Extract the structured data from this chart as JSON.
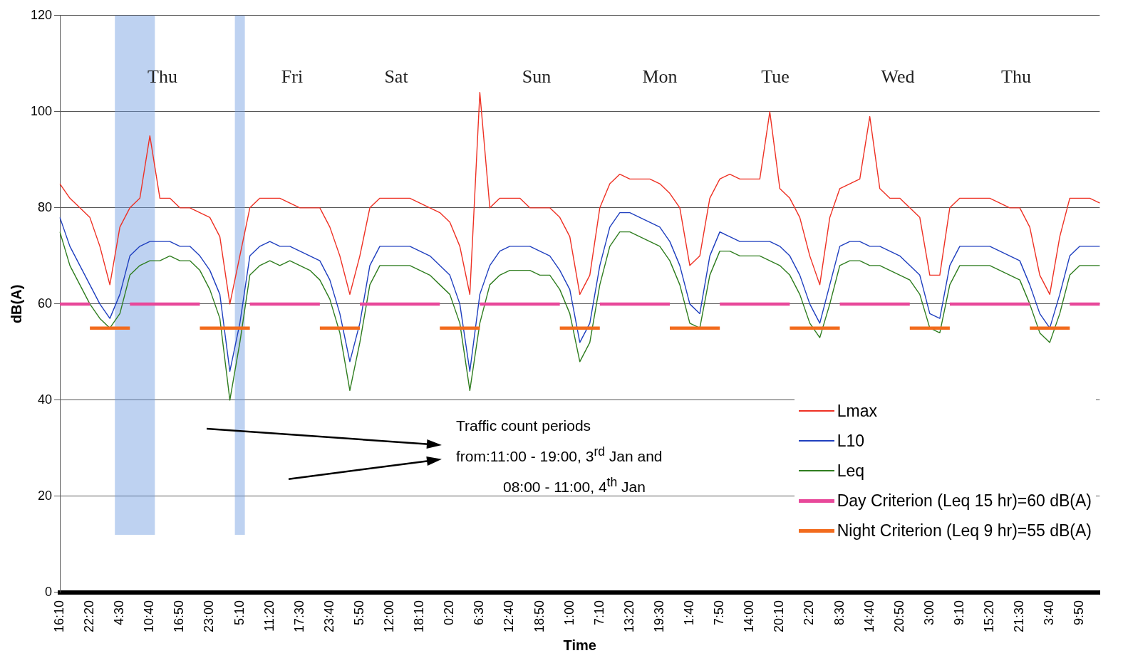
{
  "chart_data": {
    "type": "line",
    "xlabel": "Time",
    "ylabel": "dB(A)",
    "categories": [
      "16:10",
      null,
      null,
      "22:20",
      null,
      null,
      "4:30",
      null,
      null,
      "10:40",
      null,
      null,
      "16:50",
      null,
      null,
      "23:00",
      null,
      null,
      "5:10",
      null,
      null,
      "11:20",
      null,
      null,
      "17:30",
      null,
      null,
      "23:40",
      null,
      null,
      "5:50",
      null,
      null,
      "12:00",
      null,
      null,
      "18:10",
      null,
      null,
      "0:20",
      null,
      null,
      "6:30",
      null,
      null,
      "12:40",
      null,
      null,
      "18:50",
      null,
      null,
      "1:00",
      null,
      null,
      "7:10",
      null,
      null,
      "13:20",
      null,
      null,
      "19:30",
      null,
      null,
      "1:40",
      null,
      null,
      "7:50",
      null,
      null,
      "14:00",
      null,
      null,
      "20:10",
      null,
      null,
      "2:20",
      null,
      null,
      "8:30",
      null,
      null,
      "14:40",
      null,
      null,
      "20:50",
      null,
      null,
      "3:00",
      null,
      null,
      "9:10",
      null,
      null,
      "15:20",
      null,
      null,
      "21:30",
      null,
      null,
      "3:40",
      null,
      null,
      "9:50",
      null,
      null
    ],
    "series": [
      {
        "name": "Lmax",
        "color": "#ee3124",
        "values": [
          85,
          82,
          80,
          78,
          72,
          64,
          76,
          80,
          82,
          95,
          82,
          82,
          80,
          80,
          79,
          78,
          74,
          60,
          70,
          80,
          82,
          82,
          82,
          81,
          80,
          80,
          80,
          76,
          70,
          62,
          70,
          80,
          82,
          82,
          82,
          82,
          81,
          80,
          79,
          77,
          72,
          62,
          104,
          80,
          82,
          82,
          82,
          80,
          80,
          80,
          78,
          74,
          62,
          66,
          80,
          85,
          87,
          86,
          86,
          86,
          85,
          83,
          80,
          68,
          70,
          82,
          86,
          87,
          86,
          86,
          86,
          100,
          84,
          82,
          78,
          70,
          64,
          78,
          84,
          85,
          86,
          99,
          84,
          82,
          82,
          80,
          78,
          66,
          66,
          80,
          82,
          82,
          82,
          82,
          81,
          80,
          80,
          76,
          66,
          62,
          74,
          82,
          82,
          82,
          81
        ]
      },
      {
        "name": "L10",
        "color": "#1f3fbf",
        "values": [
          78,
          72,
          68,
          64,
          60,
          57,
          62,
          70,
          72,
          73,
          73,
          73,
          72,
          72,
          70,
          67,
          62,
          46,
          56,
          70,
          72,
          73,
          72,
          72,
          71,
          70,
          69,
          65,
          58,
          48,
          56,
          68,
          72,
          72,
          72,
          72,
          71,
          70,
          68,
          66,
          60,
          46,
          62,
          68,
          71,
          72,
          72,
          72,
          71,
          70,
          67,
          63,
          52,
          56,
          68,
          76,
          79,
          79,
          78,
          77,
          76,
          73,
          68,
          60,
          58,
          70,
          75,
          74,
          73,
          73,
          73,
          73,
          72,
          70,
          66,
          60,
          56,
          64,
          72,
          73,
          73,
          72,
          72,
          71,
          70,
          68,
          66,
          58,
          57,
          68,
          72,
          72,
          72,
          72,
          71,
          70,
          69,
          64,
          58,
          55,
          62,
          70,
          72,
          72,
          72
        ]
      },
      {
        "name": "Leq",
        "color": "#2f7d1f",
        "values": [
          75,
          68,
          64,
          60,
          57,
          55,
          58,
          66,
          68,
          69,
          69,
          70,
          69,
          69,
          67,
          63,
          57,
          40,
          52,
          66,
          68,
          69,
          68,
          69,
          68,
          67,
          65,
          61,
          54,
          42,
          52,
          64,
          68,
          68,
          68,
          68,
          67,
          66,
          64,
          62,
          56,
          42,
          56,
          64,
          66,
          67,
          67,
          67,
          66,
          66,
          63,
          58,
          48,
          52,
          64,
          72,
          75,
          75,
          74,
          73,
          72,
          69,
          64,
          56,
          55,
          66,
          71,
          71,
          70,
          70,
          70,
          69,
          68,
          66,
          62,
          56,
          53,
          60,
          68,
          69,
          69,
          68,
          68,
          67,
          66,
          65,
          62,
          55,
          54,
          64,
          68,
          68,
          68,
          68,
          67,
          66,
          65,
          60,
          54,
          52,
          58,
          66,
          68,
          68,
          68
        ]
      },
      {
        "name": "Day Criterion (Leq 15 hr)=60 dB(A)",
        "color": "#e8489a",
        "values": [
          60,
          60,
          60,
          60,
          null,
          null,
          null,
          60,
          60,
          60,
          60,
          60,
          60,
          60,
          60,
          null,
          null,
          null,
          null,
          60,
          60,
          60,
          60,
          60,
          60,
          60,
          60,
          null,
          null,
          null,
          60,
          60,
          60,
          60,
          60,
          60,
          60,
          60,
          60,
          null,
          null,
          null,
          60,
          60,
          60,
          60,
          60,
          60,
          60,
          60,
          60,
          null,
          null,
          null,
          60,
          60,
          60,
          60,
          60,
          60,
          60,
          60,
          null,
          null,
          null,
          null,
          60,
          60,
          60,
          60,
          60,
          60,
          60,
          60,
          null,
          null,
          null,
          null,
          60,
          60,
          60,
          60,
          60,
          60,
          60,
          60,
          null,
          null,
          null,
          60,
          60,
          60,
          60,
          60,
          60,
          60,
          60,
          60,
          null,
          null,
          null,
          60,
          60,
          60,
          60
        ]
      },
      {
        "name": "Night Criterion (Leq 9 hr)=55 dB(A)",
        "color": "#f26b1d",
        "values": [
          null,
          null,
          null,
          55,
          55,
          55,
          55,
          55,
          null,
          null,
          null,
          null,
          null,
          null,
          55,
          55,
          55,
          55,
          55,
          55,
          null,
          null,
          null,
          null,
          null,
          null,
          55,
          55,
          55,
          55,
          55,
          null,
          null,
          null,
          null,
          null,
          null,
          null,
          55,
          55,
          55,
          55,
          55,
          null,
          null,
          null,
          null,
          null,
          null,
          null,
          55,
          55,
          55,
          55,
          55,
          null,
          null,
          null,
          null,
          null,
          null,
          55,
          55,
          55,
          55,
          55,
          55,
          null,
          null,
          null,
          null,
          null,
          null,
          55,
          55,
          55,
          55,
          55,
          55,
          null,
          null,
          null,
          null,
          null,
          null,
          55,
          55,
          55,
          55,
          55,
          null,
          null,
          null,
          null,
          null,
          null,
          null,
          55,
          55,
          55,
          55,
          55,
          null,
          null,
          null
        ]
      }
    ],
    "ylim": [
      0,
      120
    ],
    "yticks": [
      0,
      20,
      40,
      60,
      80,
      100,
      120
    ],
    "grid": "y",
    "legend": "bottom right",
    "marker": "none",
    "bands": [
      {
        "axis": "x",
        "from": "4:30",
        "to": "10:40",
        "color": "#6f9be0"
      },
      {
        "axis": "x",
        "from": "5:10",
        "to": "5:10",
        "color": "#6f9be0"
      }
    ],
    "annotations": [
      "Thu",
      "Fri",
      "Sat",
      "Sun",
      "Mon",
      "Tue",
      "Wed",
      "Thu",
      "Traffic count periods\nfrom:11:00 - 19:00, 3$^{rd}$ Jan and\n08:00 - 11:00, 4$^{th}$ Jan"
    ]
  }
}
